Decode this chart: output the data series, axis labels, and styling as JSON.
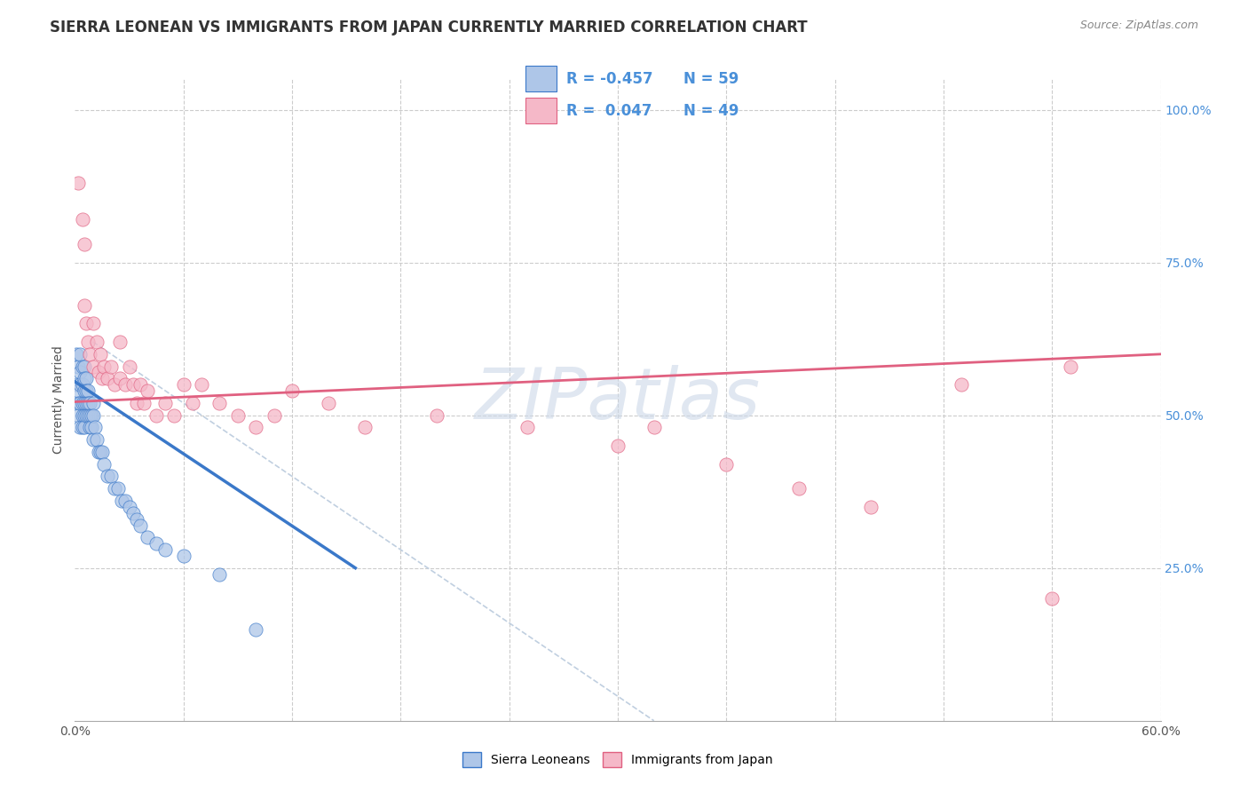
{
  "title": "SIERRA LEONEAN VS IMMIGRANTS FROM JAPAN CURRENTLY MARRIED CORRELATION CHART",
  "source": "Source: ZipAtlas.com",
  "ylabel": "Currently Married",
  "xlim": [
    0.0,
    0.6
  ],
  "ylim": [
    0.0,
    1.05
  ],
  "xtick_positions": [
    0.0,
    0.06,
    0.12,
    0.18,
    0.24,
    0.3,
    0.36,
    0.42,
    0.48,
    0.54,
    0.6
  ],
  "xtick_labels": [
    "0.0%",
    "",
    "",
    "",
    "",
    "",
    "",
    "",
    "",
    "",
    "60.0%"
  ],
  "ytick_positions": [
    0.0,
    0.25,
    0.5,
    0.75,
    1.0
  ],
  "ytick_labels": [
    "",
    "25.0%",
    "50.0%",
    "75.0%",
    "100.0%"
  ],
  "color_blue": "#aec6e8",
  "color_pink": "#f5b8c8",
  "line_blue": "#3a78c9",
  "line_pink": "#e06080",
  "line_dashed_color": "#c0cfe0",
  "watermark": "ZIPatlas",
  "title_fontsize": 12,
  "axis_label_fontsize": 10,
  "tick_fontsize": 10,
  "legend_fontsize": 13,
  "sierra_x": [
    0.001,
    0.001,
    0.002,
    0.002,
    0.002,
    0.002,
    0.003,
    0.003,
    0.003,
    0.003,
    0.003,
    0.004,
    0.004,
    0.004,
    0.004,
    0.004,
    0.005,
    0.005,
    0.005,
    0.005,
    0.005,
    0.005,
    0.006,
    0.006,
    0.006,
    0.006,
    0.007,
    0.007,
    0.007,
    0.008,
    0.008,
    0.008,
    0.009,
    0.009,
    0.01,
    0.01,
    0.01,
    0.011,
    0.012,
    0.013,
    0.014,
    0.015,
    0.016,
    0.018,
    0.02,
    0.022,
    0.024,
    0.026,
    0.028,
    0.03,
    0.032,
    0.034,
    0.036,
    0.04,
    0.045,
    0.05,
    0.06,
    0.08,
    0.1
  ],
  "sierra_y": [
    0.6,
    0.55,
    0.58,
    0.54,
    0.52,
    0.5,
    0.6,
    0.57,
    0.55,
    0.52,
    0.48,
    0.58,
    0.55,
    0.52,
    0.5,
    0.48,
    0.58,
    0.56,
    0.54,
    0.52,
    0.5,
    0.48,
    0.56,
    0.54,
    0.52,
    0.5,
    0.54,
    0.52,
    0.5,
    0.52,
    0.5,
    0.48,
    0.5,
    0.48,
    0.52,
    0.5,
    0.46,
    0.48,
    0.46,
    0.44,
    0.44,
    0.44,
    0.42,
    0.4,
    0.4,
    0.38,
    0.38,
    0.36,
    0.36,
    0.35,
    0.34,
    0.33,
    0.32,
    0.3,
    0.29,
    0.28,
    0.27,
    0.24,
    0.15
  ],
  "japan_x": [
    0.002,
    0.004,
    0.005,
    0.005,
    0.006,
    0.007,
    0.008,
    0.01,
    0.01,
    0.012,
    0.013,
    0.014,
    0.015,
    0.016,
    0.018,
    0.02,
    0.022,
    0.025,
    0.025,
    0.028,
    0.03,
    0.032,
    0.034,
    0.036,
    0.038,
    0.04,
    0.045,
    0.05,
    0.055,
    0.06,
    0.065,
    0.07,
    0.08,
    0.09,
    0.1,
    0.11,
    0.12,
    0.14,
    0.16,
    0.2,
    0.25,
    0.3,
    0.32,
    0.36,
    0.4,
    0.44,
    0.49,
    0.54,
    0.55
  ],
  "japan_y": [
    0.88,
    0.82,
    0.78,
    0.68,
    0.65,
    0.62,
    0.6,
    0.65,
    0.58,
    0.62,
    0.57,
    0.6,
    0.56,
    0.58,
    0.56,
    0.58,
    0.55,
    0.62,
    0.56,
    0.55,
    0.58,
    0.55,
    0.52,
    0.55,
    0.52,
    0.54,
    0.5,
    0.52,
    0.5,
    0.55,
    0.52,
    0.55,
    0.52,
    0.5,
    0.48,
    0.5,
    0.54,
    0.52,
    0.48,
    0.5,
    0.48,
    0.45,
    0.48,
    0.42,
    0.38,
    0.35,
    0.55,
    0.2,
    0.58
  ]
}
